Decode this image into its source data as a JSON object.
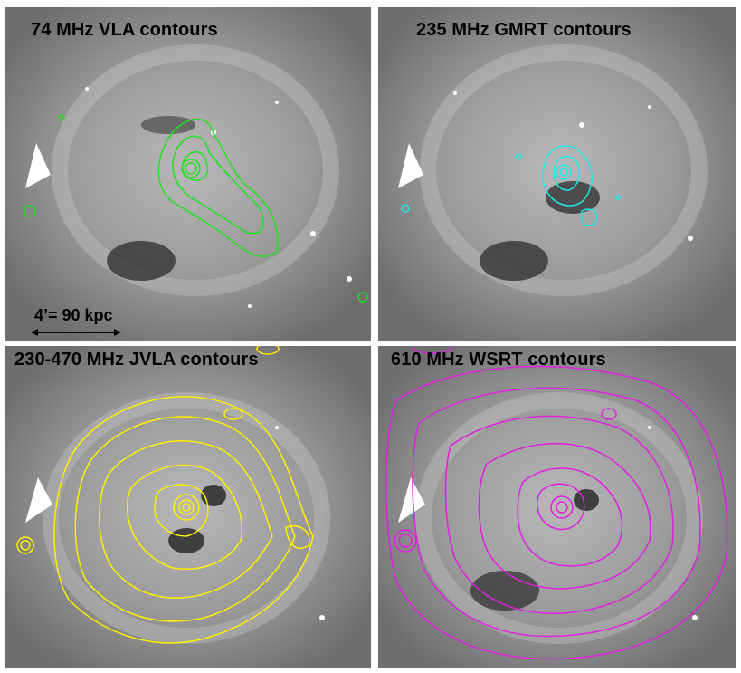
{
  "panels": [
    {
      "label": "74 MHz VLA contours",
      "contour_color": "#22e022"
    },
    {
      "label": "235 MHz GMRT contours",
      "contour_color": "#22e6e6"
    },
    {
      "label": "230-470 MHz JVLA contours",
      "contour_color": "#ffee00"
    },
    {
      "label": "610 MHz WSRT contours",
      "contour_color": "#e020e0"
    }
  ],
  "scalebar": {
    "label": "4’= 90 kpc"
  }
}
